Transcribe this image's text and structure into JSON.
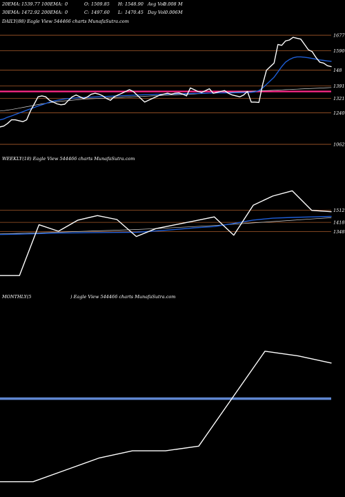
{
  "header": {
    "row1": [
      {
        "label": "20EMA:",
        "value": "1539.77"
      },
      {
        "label": "100EMA:",
        "value": "0"
      },
      {
        "label": "O:",
        "value": "1509.85"
      },
      {
        "label": "H:",
        "value": "1548.90"
      },
      {
        "label": "Avg Vol:",
        "value": "0.008"
      },
      {
        "label": "",
        "value": "M"
      }
    ],
    "row2": [
      {
        "label": "30EMA:",
        "value": "1472.92"
      },
      {
        "label": "200EMA:",
        "value": "0"
      },
      {
        "label": "C:",
        "value": "1497.60"
      },
      {
        "label": "L:",
        "value": "1470.45"
      },
      {
        "label": "Day Vol:",
        "value": "0.006"
      },
      {
        "label": "",
        "value": "M"
      }
    ]
  },
  "colors": {
    "background": "#000000",
    "price_line": "#ffffff",
    "ema_blue": "#1e5ed8",
    "ema_thin": "#d8d8d8",
    "level_line": "#a85a2a",
    "highlight_level": "#ff2a8a",
    "monthly_band": "#5f86d0"
  },
  "chart_data": [
    {
      "type": "line",
      "panel": "daily",
      "title": "DAILY(88) Eagle   View  544466  charts MunafaSutra.com",
      "levels": [
        1677,
        1590,
        148,
        1391,
        1321,
        1240,
        1062
      ],
      "level_labels": [
        "1677",
        "1590",
        "148",
        "1391",
        "1321",
        "1240",
        "1062"
      ],
      "highlight_level": 1360,
      "ylim": [
        1000,
        1720
      ],
      "x": [
        0,
        1,
        2,
        3,
        4,
        5,
        6,
        7,
        8,
        9,
        10,
        11,
        12,
        13,
        14,
        15,
        16,
        17,
        18,
        19,
        20,
        21,
        22,
        23,
        24,
        25,
        26,
        27,
        28,
        29,
        30,
        31,
        32,
        33,
        34,
        35,
        36,
        37,
        38,
        39,
        40,
        41,
        42,
        43,
        44,
        45,
        46,
        47,
        48,
        49,
        50,
        51,
        52,
        53,
        54,
        55,
        56,
        57,
        58,
        59,
        60,
        61,
        62,
        63,
        64,
        65,
        66,
        67,
        68,
        69,
        70,
        71,
        72,
        73,
        74,
        75,
        76,
        77,
        78,
        79,
        80,
        81,
        82,
        83,
        84,
        85,
        86,
        87
      ],
      "series": [
        {
          "role": "price",
          "values": [
            1160,
            1165,
            1180,
            1200,
            1200,
            1195,
            1190,
            1200,
            1250,
            1290,
            1330,
            1335,
            1330,
            1310,
            1300,
            1290,
            1285,
            1288,
            1310,
            1330,
            1340,
            1330,
            1320,
            1330,
            1345,
            1350,
            1345,
            1335,
            1320,
            1310,
            1330,
            1340,
            1350,
            1360,
            1370,
            1360,
            1340,
            1320,
            1300,
            1310,
            1320,
            1330,
            1340,
            1345,
            1350,
            1345,
            1350,
            1352,
            1345,
            1335,
            1380,
            1370,
            1360,
            1355,
            1365,
            1375,
            1350,
            1355,
            1360,
            1365,
            1350,
            1340,
            1335,
            1330,
            1340,
            1360,
            1300,
            1300,
            1298,
            1400,
            1480,
            1500,
            1520,
            1625,
            1620,
            1645,
            1650,
            1665,
            1660,
            1655,
            1625,
            1595,
            1585,
            1552,
            1525,
            1520,
            1505,
            1500
          ]
        },
        {
          "role": "ema-blue",
          "values": [
            1200,
            1205,
            1215,
            1222,
            1230,
            1238,
            1246,
            1254,
            1262,
            1270,
            1278,
            1285,
            1292,
            1300,
            1305,
            1310,
            1314,
            1318,
            1320,
            1322,
            1324,
            1325,
            1326,
            1327,
            1328,
            1329,
            1330,
            1331,
            1332,
            1333,
            1334,
            1335,
            1336,
            1337,
            1338,
            1339,
            1340,
            1341,
            1342,
            1342,
            1343,
            1344,
            1344,
            1345,
            1345,
            1346,
            1346,
            1347,
            1347,
            1348,
            1348,
            1349,
            1349,
            1350,
            1350,
            1351,
            1351,
            1352,
            1352,
            1352,
            1352,
            1352,
            1353,
            1353,
            1353,
            1354,
            1355,
            1358,
            1365,
            1380,
            1400,
            1420,
            1440,
            1470,
            1500,
            1525,
            1540,
            1550,
            1555,
            1555,
            1553,
            1550,
            1546,
            1542,
            1538,
            1535,
            1532,
            1530
          ]
        },
        {
          "role": "ema-thin",
          "values": [
            1250,
            1252,
            1255,
            1258,
            1262,
            1266,
            1270,
            1274,
            1278,
            1282,
            1286,
            1290,
            1293,
            1296,
            1299,
            1302,
            1305,
            1307,
            1309,
            1311,
            1313,
            1315,
            1317,
            1318,
            1319,
            1320,
            1321,
            1322,
            1323,
            1324,
            1325,
            1326,
            1327,
            1328,
            1329,
            1330,
            1331,
            1332,
            1333,
            1334,
            1335,
            1336,
            1337,
            1338,
            1339,
            1340,
            1341,
            1342,
            1343,
            1344,
            1345,
            1346,
            1347,
            1348,
            1349,
            1350,
            1351,
            1352,
            1353,
            1354,
            1355,
            1356,
            1357,
            1358,
            1359,
            1360,
            1361,
            1362,
            1363,
            1364,
            1365,
            1366,
            1367,
            1368,
            1369,
            1370,
            1371,
            1372,
            1373,
            1374,
            1375,
            1376,
            1377,
            1378,
            1379,
            1380,
            1381,
            1382
          ]
        }
      ]
    },
    {
      "type": "line",
      "panel": "weekly",
      "title": "WEEKLY(18) Eagle   View  544466  charts MunafaSutra.com",
      "levels": [
        1512,
        1418,
        1348
      ],
      "level_labels": [
        "1512",
        "1418",
        "1348"
      ],
      "ylim": [
        900,
        1800
      ],
      "x": [
        0,
        1,
        2,
        3,
        4,
        5,
        6,
        7,
        8,
        9,
        10,
        11,
        12,
        13,
        14,
        15,
        16,
        17
      ],
      "series": [
        {
          "role": "price",
          "values": [
            1010,
            1010,
            1400,
            1350,
            1435,
            1470,
            1440,
            1310,
            1370,
            1400,
            1430,
            1460,
            1320,
            1550,
            1620,
            1660,
            1510,
            1500
          ]
        },
        {
          "role": "ema-blue",
          "values": [
            1325,
            1328,
            1332,
            1336,
            1338,
            1340,
            1341,
            1342,
            1352,
            1364,
            1376,
            1386,
            1410,
            1436,
            1450,
            1456,
            1460,
            1464
          ]
        },
        {
          "role": "ema-thin",
          "values": [
            1330,
            1334,
            1338,
            1343,
            1348,
            1353,
            1358,
            1363,
            1370,
            1378,
            1386,
            1394,
            1404,
            1414,
            1424,
            1434,
            1444,
            1454
          ]
        }
      ]
    },
    {
      "type": "line",
      "panel": "monthly",
      "title_left": "MONTHLY(5",
      "title_right": ") Eagle   View  544466  charts MunafaSutra.com",
      "band_level": 1400,
      "ylim": [
        1000,
        1800
      ],
      "x": [
        0,
        1,
        2,
        3,
        4,
        5,
        6,
        7,
        8,
        9,
        10
      ],
      "series": [
        {
          "role": "price",
          "values": [
            1050,
            1050,
            1100,
            1150,
            1180,
            1180,
            1200,
            1400,
            1600,
            1580,
            1550
          ]
        }
      ]
    }
  ]
}
